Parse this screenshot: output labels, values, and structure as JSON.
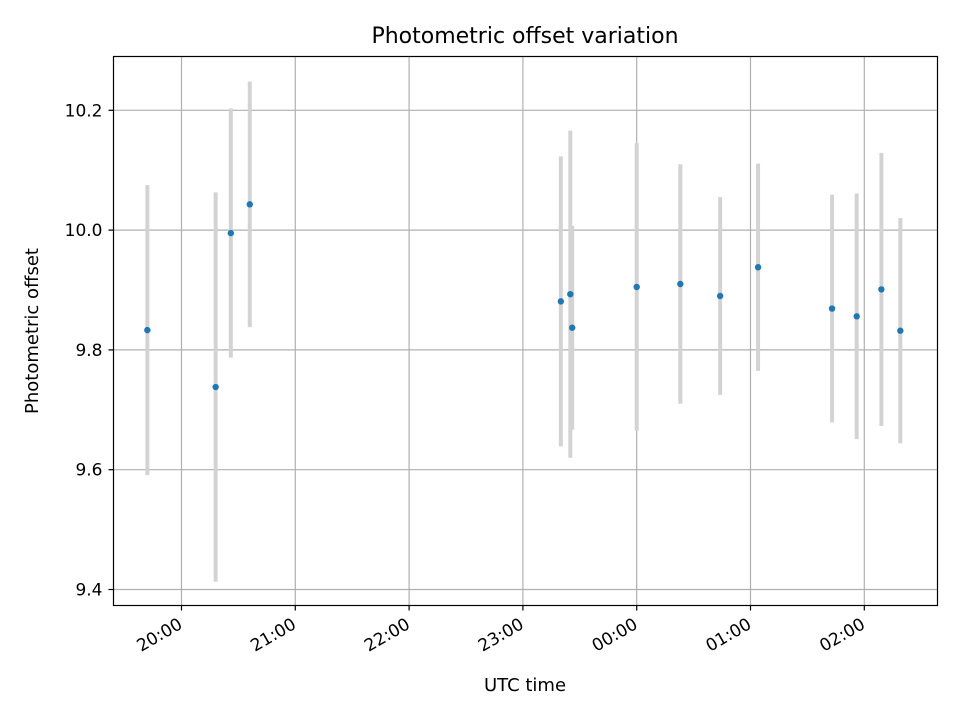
{
  "chart_data": {
    "type": "scatter",
    "title": "Photometric offset variation",
    "xlabel": "UTC time",
    "ylabel": "Photometric offset",
    "x_tick_labels": [
      "20:00",
      "21:00",
      "22:00",
      "23:00",
      "00:00",
      "01:00",
      "02:00"
    ],
    "y_ticks": [
      9.4,
      9.6,
      9.8,
      10.0,
      10.2
    ],
    "y_tick_labels": [
      "9.4",
      "9.6",
      "9.8",
      "10.0",
      "10.2"
    ],
    "grid": true,
    "series": [
      {
        "marker_color": "#1f77b4",
        "errorbar_color": "#d3d3d3",
        "points": [
          {
            "x": "19:42",
            "y": 9.833,
            "err": 0.242
          },
          {
            "x": "20:18",
            "y": 9.738,
            "err": 0.325
          },
          {
            "x": "20:26",
            "y": 9.995,
            "err": 0.208
          },
          {
            "x": "20:36",
            "y": 10.043,
            "err": 0.205
          },
          {
            "x": "23:20",
            "y": 9.881,
            "err": 0.242
          },
          {
            "x": "23:25",
            "y": 9.893,
            "err": 0.273
          },
          {
            "x": "23:26",
            "y": 9.837,
            "err": 0.17
          },
          {
            "x": "00:00",
            "y": 9.905,
            "err": 0.24
          },
          {
            "x": "00:23",
            "y": 9.91,
            "err": 0.2
          },
          {
            "x": "00:44",
            "y": 9.89,
            "err": 0.165
          },
          {
            "x": "01:04",
            "y": 9.938,
            "err": 0.173
          },
          {
            "x": "01:43",
            "y": 9.869,
            "err": 0.19
          },
          {
            "x": "01:56",
            "y": 9.856,
            "err": 0.205
          },
          {
            "x": "02:09",
            "y": 9.901,
            "err": 0.228
          },
          {
            "x": "02:19",
            "y": 9.832,
            "err": 0.188
          }
        ]
      }
    ]
  }
}
